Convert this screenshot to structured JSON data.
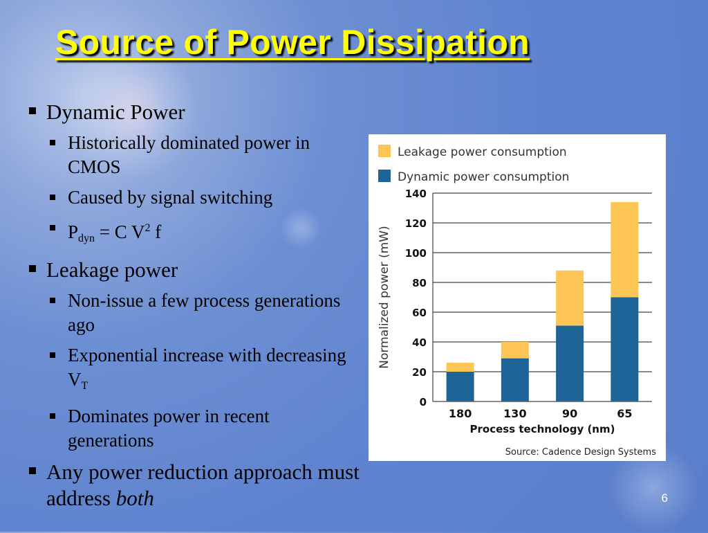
{
  "slide": {
    "title": "Source of Power Dissipation",
    "number": "6"
  },
  "bullets": {
    "dynamic": {
      "label": "Dynamic Power",
      "sub1": "Historically dominated power in CMOS",
      "sub2": "Caused by signal switching",
      "formula": {
        "p": "P",
        "p_sub": "dyn",
        "rest1": " = C V",
        "sup": "2",
        "rest2": " f"
      }
    },
    "leakage": {
      "label": "Leakage power",
      "sub1": "Non-issue a few process generations ago",
      "sub2_text": "Exponential increase with decreasing V",
      "sub2_sub": "T",
      "sub3": "Dominates power in recent generations"
    },
    "any": {
      "text": "Any power reduction approach must address ",
      "emph": "both"
    }
  },
  "chart_data": {
    "type": "bar",
    "stacked": true,
    "categories": [
      "180",
      "130",
      "90",
      "65"
    ],
    "series": [
      {
        "name": "Dynamic power consumption",
        "values": [
          20,
          29,
          51,
          70
        ],
        "color": "#1f6496"
      },
      {
        "name": "Leakage power consumption",
        "values": [
          6,
          11,
          37,
          64
        ],
        "color": "#fcc556"
      }
    ],
    "xlabel": "Process technology (nm)",
    "ylabel": "Normalized power (mW)",
    "ylim": [
      0,
      140
    ],
    "yticks": [
      0,
      20,
      40,
      60,
      80,
      100,
      120,
      140
    ],
    "grid": true,
    "legend": "top-left",
    "source": "Source: Cadence Design Systems"
  }
}
